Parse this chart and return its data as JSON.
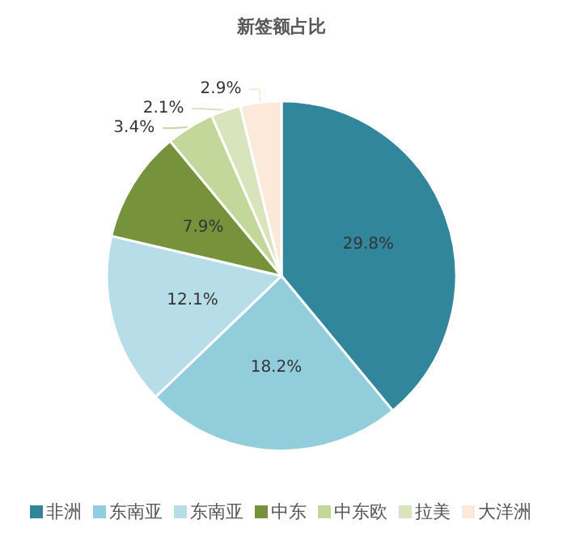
{
  "chart_data": {
    "type": "pie",
    "title": "新签额占比",
    "categories": [
      "非洲",
      "东南亚",
      "东南亚",
      "中东",
      "中东欧",
      "拉美",
      "大洋洲"
    ],
    "values": [
      29.8,
      18.2,
      12.1,
      7.9,
      3.4,
      2.1,
      2.9
    ],
    "value_labels": [
      "29.8%",
      "18.2%",
      "12.1%",
      "7.9%",
      "3.4%",
      "2.1%",
      "2.9%"
    ],
    "colors": [
      "#31869b",
      "#92cddc",
      "#b7dee8",
      "#76933c",
      "#c4d79b",
      "#d8e4bc",
      "#fde9d9"
    ],
    "legend": "bottom"
  }
}
